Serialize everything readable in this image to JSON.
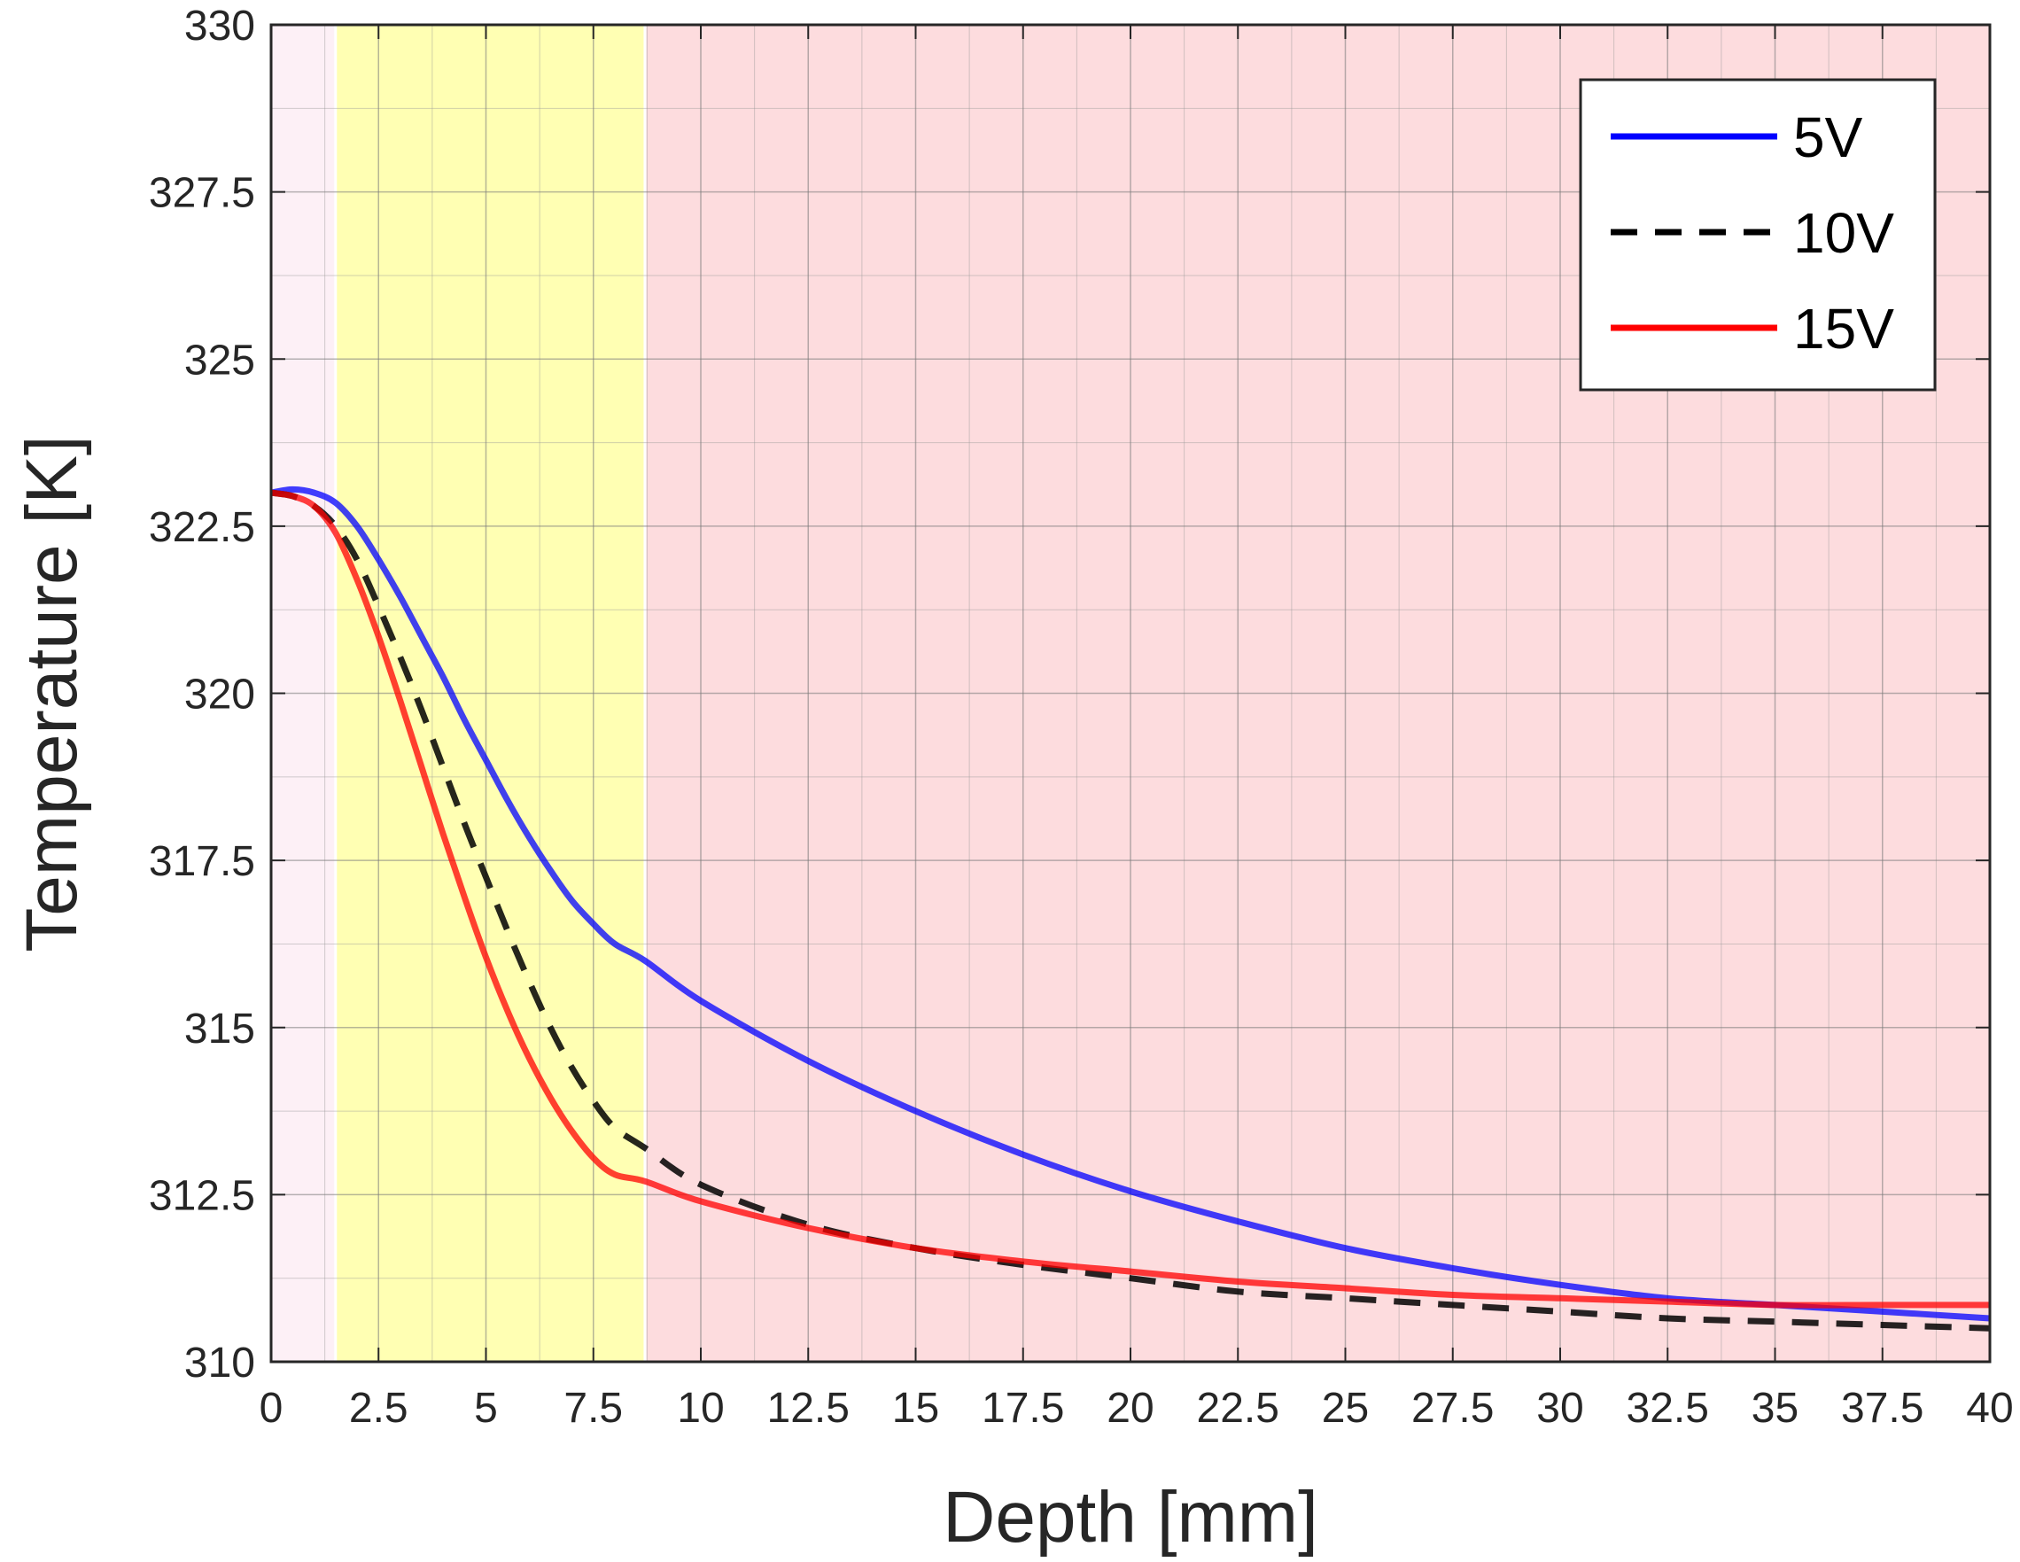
{
  "chart_data": {
    "type": "line",
    "title": "",
    "xlabel": "Depth [mm]",
    "ylabel": "Temperature [K]",
    "xlim": [
      0,
      40
    ],
    "ylim": [
      310,
      330
    ],
    "x_ticks": [
      "0",
      "2.5",
      "5",
      "7.5",
      "10",
      "12.5",
      "15",
      "17.5",
      "20",
      "22.5",
      "25",
      "27.5",
      "30",
      "32.5",
      "35",
      "37.5",
      "40"
    ],
    "y_ticks": [
      "310",
      "312.5",
      "315",
      "317.5",
      "320",
      "322.5",
      "325",
      "327.5",
      "330"
    ],
    "grid": true,
    "minor_grid": true,
    "legend_position": "top-right",
    "regions": [
      {
        "x0": 0,
        "x1": 1.5,
        "color": "#fdf0f6"
      },
      {
        "x0": 1.5,
        "x1": 8.7,
        "color": "#ffffb3"
      },
      {
        "x0": 8.7,
        "x1": 40,
        "color": "#fddcde"
      }
    ],
    "series": [
      {
        "name": "5V",
        "color": "#0000ff",
        "style": "solid",
        "x": [
          0,
          0.5,
          1.0,
          1.5,
          2.0,
          2.5,
          3.0,
          3.5,
          4.0,
          4.5,
          5.0,
          5.5,
          6.0,
          6.5,
          7.0,
          7.5,
          8.0,
          8.7,
          10,
          12.5,
          15,
          17.5,
          20,
          22.5,
          25,
          27.5,
          30,
          32.5,
          35,
          37.5,
          40
        ],
        "y": [
          323.0,
          323.05,
          323.0,
          322.85,
          322.5,
          322.0,
          321.45,
          320.85,
          320.25,
          319.6,
          319.0,
          318.4,
          317.85,
          317.35,
          316.9,
          316.55,
          316.25,
          316.0,
          315.4,
          314.5,
          313.75,
          313.1,
          312.55,
          312.1,
          311.7,
          311.4,
          311.15,
          310.95,
          310.85,
          310.75,
          310.65
        ]
      },
      {
        "name": "10V",
        "color": "#000000",
        "style": "dashed",
        "x": [
          0,
          0.5,
          1.0,
          1.5,
          2.0,
          2.5,
          3.0,
          3.5,
          4.0,
          4.5,
          5.0,
          5.5,
          6.0,
          6.5,
          7.0,
          7.5,
          8.0,
          8.7,
          10,
          12.5,
          15,
          17.5,
          20,
          22.5,
          25,
          27.5,
          30,
          32.5,
          35,
          37.5,
          40
        ],
        "y": [
          323.0,
          322.95,
          322.8,
          322.5,
          322.0,
          321.3,
          320.55,
          319.75,
          318.9,
          318.05,
          317.25,
          316.45,
          315.7,
          315.0,
          314.4,
          313.9,
          313.5,
          313.2,
          312.65,
          312.05,
          311.7,
          311.45,
          311.25,
          311.05,
          310.95,
          310.85,
          310.75,
          310.65,
          310.6,
          310.55,
          310.5
        ]
      },
      {
        "name": "15V",
        "color": "#ff0000",
        "style": "solid",
        "x": [
          0,
          0.5,
          1.0,
          1.5,
          2.0,
          2.5,
          3.0,
          3.5,
          4.0,
          4.5,
          5.0,
          5.5,
          6.0,
          6.5,
          7.0,
          7.5,
          8.0,
          8.7,
          10,
          12.5,
          15,
          17.5,
          20,
          22.5,
          25,
          27.5,
          30,
          32.5,
          35,
          37.5,
          40
        ],
        "y": [
          323.0,
          322.95,
          322.8,
          322.4,
          321.7,
          320.85,
          319.9,
          318.9,
          317.9,
          316.95,
          316.05,
          315.25,
          314.55,
          313.95,
          313.45,
          313.05,
          312.8,
          312.7,
          312.4,
          312.0,
          311.7,
          311.5,
          311.35,
          311.2,
          311.1,
          311.0,
          310.95,
          310.9,
          310.85,
          310.85,
          310.85
        ]
      }
    ]
  }
}
